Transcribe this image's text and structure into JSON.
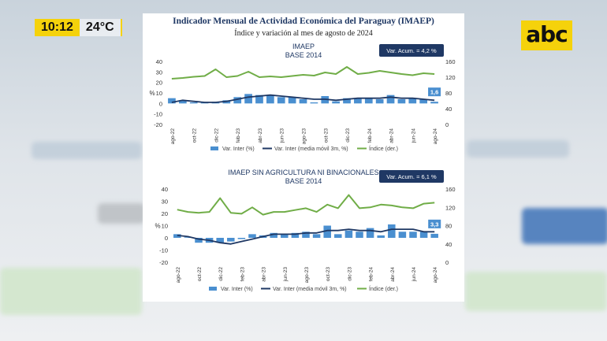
{
  "overlay": {
    "time": "10:12",
    "temperature": "24°C",
    "brand": "abc",
    "colors": {
      "accent": "#f5d20b"
    }
  },
  "header": {
    "title": "Indicador Mensual de Actividad Económica del Paraguay (IMAEP)",
    "subtitle": "Índice y variación al mes de agosto de 2024"
  },
  "chart_data": [
    {
      "type": "bar",
      "title": "IMAEP",
      "subtitle": "BASE 2014",
      "ylabel": "%",
      "ylim": [
        -20,
        40
      ],
      "yticks": [
        -20,
        -10,
        0,
        10,
        20,
        30,
        40
      ],
      "y2lim": [
        0,
        160
      ],
      "y2ticks": [
        0,
        40,
        80,
        120,
        160
      ],
      "categories": [
        "ago-22",
        "sep-22",
        "oct-22",
        "nov-22",
        "dic-22",
        "ene-23",
        "feb-23",
        "mar-23",
        "abr-23",
        "may-23",
        "jun-23",
        "jul-23",
        "ago-23",
        "sep-23",
        "oct-23",
        "nov-23",
        "dic-23",
        "ene-24",
        "feb-24",
        "mar-24",
        "abr-24",
        "may-24",
        "jun-24",
        "jul-24",
        "ago-24"
      ],
      "xtick_labels": [
        "ago-22",
        "",
        "oct-22",
        "",
        "dic-22",
        "",
        "feb-23",
        "",
        "abr-23",
        "",
        "jun-23",
        "",
        "ago-23",
        "",
        "oct-23",
        "",
        "dic-23",
        "",
        "feb-24",
        "",
        "abr-24",
        "",
        "jun-24",
        "",
        "ago-24"
      ],
      "series": [
        {
          "name": "Var. Inter (%)",
          "kind": "bar",
          "axis": "left",
          "color": "#4a8fd0",
          "values": [
            5,
            3,
            1,
            1,
            1.5,
            3,
            6,
            9,
            8,
            8,
            6,
            6,
            4,
            1,
            7,
            2,
            5,
            5,
            5,
            4,
            8,
            4,
            5,
            4,
            1.6
          ]
        },
        {
          "name": "Var. Inter (media móvil 3m, %)",
          "kind": "line",
          "axis": "left",
          "color": "#1f3864",
          "values": [
            1,
            3,
            2,
            1,
            1,
            2,
            4,
            6,
            7,
            8,
            7,
            6,
            5,
            4,
            4,
            3,
            4,
            5,
            5,
            5,
            6,
            5,
            5,
            4,
            3
          ]
        },
        {
          "name": "Índice (der.)",
          "kind": "line",
          "axis": "right",
          "color": "#70ad47",
          "values": [
            116,
            118,
            121,
            123,
            140,
            120,
            123,
            134,
            120,
            122,
            120,
            123,
            126,
            124,
            132,
            128,
            146,
            128,
            131,
            136,
            132,
            128,
            125,
            130,
            128
          ]
        }
      ],
      "last_label": "1,6",
      "annotation": "Var. Acum. =  4,2 %"
    },
    {
      "type": "bar",
      "title": "IMAEP SIN AGRICULTURA NI BINACIONALES",
      "subtitle": "BASE 2014",
      "ylabel": "%",
      "ylim": [
        -20,
        40
      ],
      "yticks": [
        -20,
        -10,
        0,
        10,
        20,
        30,
        40
      ],
      "y2lim": [
        0,
        160
      ],
      "y2ticks": [
        0,
        40,
        80,
        120,
        160
      ],
      "categories": [
        "ago-22",
        "sep-22",
        "oct-22",
        "nov-22",
        "dic-22",
        "ene-23",
        "feb-23",
        "mar-23",
        "abr-23",
        "may-23",
        "jun-23",
        "jul-23",
        "ago-23",
        "sep-23",
        "oct-23",
        "nov-23",
        "dic-23",
        "ene-24",
        "feb-24",
        "mar-24",
        "abr-24",
        "may-24",
        "jun-24",
        "jul-24",
        "ago-24"
      ],
      "xtick_labels": [
        "ago-22",
        "",
        "oct-22",
        "",
        "dic-22",
        "",
        "feb-23",
        "",
        "abr-23",
        "",
        "jun-23",
        "",
        "ago-23",
        "",
        "oct-23",
        "",
        "dic-23",
        "",
        "feb-24",
        "",
        "abr-24",
        "",
        "jun-24",
        "",
        "ago-24"
      ],
      "series": [
        {
          "name": "Var. Inter (%)",
          "kind": "bar",
          "axis": "left",
          "color": "#4a8fd0",
          "values": [
            3,
            0.5,
            -4,
            -4,
            -4,
            -3,
            -1,
            3,
            2,
            4,
            3,
            4,
            5,
            3,
            10,
            3,
            6,
            5,
            8,
            2,
            11,
            5,
            5,
            5,
            3.3
          ]
        },
        {
          "name": "Var. Inter (media móvil 3m, %)",
          "kind": "line",
          "axis": "left",
          "color": "#1f3864",
          "values": [
            2,
            1,
            -1,
            -2,
            -4,
            -5,
            -3,
            -1,
            1,
            3,
            3,
            3,
            4,
            4,
            6,
            6,
            7,
            6,
            6,
            5,
            7,
            7,
            7,
            5,
            5
          ]
        },
        {
          "name": "Índice (der.)",
          "kind": "line",
          "axis": "right",
          "color": "#70ad47",
          "values": [
            115,
            110,
            108,
            110,
            140,
            108,
            106,
            120,
            104,
            110,
            110,
            114,
            118,
            110,
            126,
            118,
            147,
            118,
            120,
            126,
            124,
            120,
            118,
            128,
            130
          ]
        }
      ],
      "last_label": "3,3",
      "annotation": "Var. Acum. =  6,1 %"
    }
  ]
}
